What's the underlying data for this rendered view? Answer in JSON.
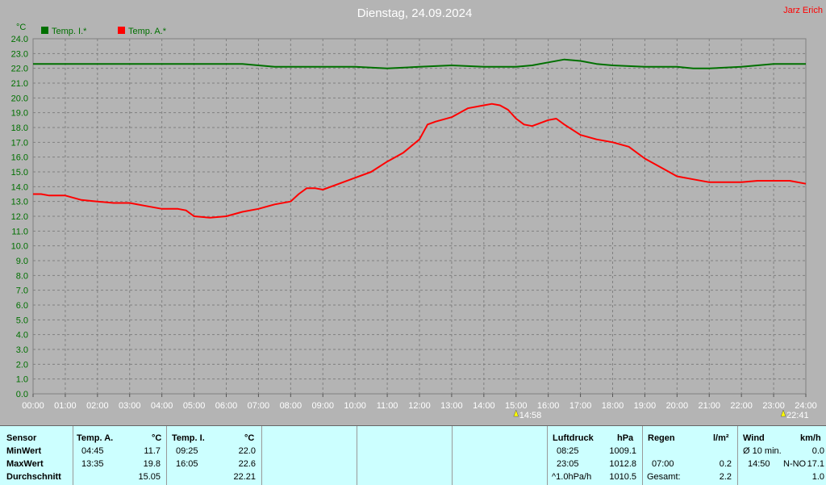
{
  "header": {
    "title": "Dienstag, 24.09.2024",
    "author": "Jarz Erich"
  },
  "chart_data": {
    "type": "line",
    "yunit": "°C",
    "ylim": [
      0,
      24
    ],
    "yticks": [
      "0.0",
      "1.0",
      "2.0",
      "3.0",
      "4.0",
      "5.0",
      "6.0",
      "7.0",
      "8.0",
      "9.0",
      "10.0",
      "11.0",
      "12.0",
      "13.0",
      "14.0",
      "15.0",
      "16.0",
      "17.0",
      "18.0",
      "19.0",
      "20.0",
      "21.0",
      "22.0",
      "23.0",
      "24.0"
    ],
    "xlim": [
      0,
      24
    ],
    "xticks": [
      "00:00",
      "01:00",
      "02:00",
      "03:00",
      "04:00",
      "05:00",
      "06:00",
      "07:00",
      "08:00",
      "09:00",
      "10:00",
      "11:00",
      "12:00",
      "13:00",
      "14:00",
      "15:00",
      "16:00",
      "17:00",
      "18:00",
      "19:00",
      "20:00",
      "21:00",
      "22:00",
      "23:00",
      "24:00"
    ],
    "grid": true,
    "legend": "top-left",
    "series": [
      {
        "name": "Temp. I.*",
        "color": "#007000",
        "x": [
          0,
          1,
          2,
          3,
          4,
          5,
          6,
          6.5,
          7,
          7.5,
          8,
          9,
          10,
          11,
          12,
          13,
          14,
          15,
          15.5,
          16,
          16.5,
          17,
          17.5,
          18,
          19,
          20,
          20.5,
          21,
          22,
          23,
          24
        ],
        "y": [
          22.3,
          22.3,
          22.3,
          22.3,
          22.3,
          22.3,
          22.3,
          22.3,
          22.2,
          22.1,
          22.1,
          22.1,
          22.1,
          22.0,
          22.1,
          22.2,
          22.1,
          22.1,
          22.2,
          22.4,
          22.6,
          22.5,
          22.3,
          22.2,
          22.1,
          22.1,
          22.0,
          22.0,
          22.1,
          22.3,
          22.3
        ]
      },
      {
        "name": "Temp. A.*",
        "color": "#ff0000",
        "x": [
          0,
          0.25,
          0.5,
          1,
          1.5,
          2,
          2.5,
          3,
          3.5,
          4,
          4.25,
          4.5,
          4.75,
          5,
          5.5,
          6,
          6.5,
          7,
          7.5,
          8,
          8.25,
          8.5,
          8.75,
          9,
          9.5,
          10,
          10.5,
          11,
          11.5,
          12,
          12.25,
          12.5,
          13,
          13.5,
          14,
          14.25,
          14.5,
          14.75,
          15,
          15.25,
          15.5,
          16,
          16.25,
          16.5,
          17,
          17.5,
          18,
          18.5,
          19,
          19.5,
          20,
          20.5,
          21,
          21.5,
          22,
          22.5,
          23,
          23.5,
          24
        ],
        "y": [
          13.5,
          13.5,
          13.4,
          13.4,
          13.1,
          13.0,
          12.9,
          12.9,
          12.7,
          12.5,
          12.5,
          12.5,
          12.4,
          12.0,
          11.9,
          12.0,
          12.3,
          12.5,
          12.8,
          13.0,
          13.5,
          13.9,
          13.9,
          13.8,
          14.2,
          14.6,
          15.0,
          15.7,
          16.3,
          17.2,
          18.2,
          18.4,
          18.7,
          19.3,
          19.5,
          19.6,
          19.5,
          19.2,
          18.6,
          18.2,
          18.1,
          18.5,
          18.6,
          18.2,
          17.5,
          17.2,
          17.0,
          16.7,
          15.9,
          15.3,
          14.7,
          14.5,
          14.3,
          14.3,
          14.3,
          14.4,
          14.4,
          14.4,
          14.2
        ]
      }
    ],
    "annotations": [
      {
        "x": 15.0,
        "label": "14:58",
        "icon": "sunrise-icon"
      },
      {
        "x": 23.3,
        "label": "22:41",
        "icon": "sunset-icon"
      }
    ]
  },
  "table": {
    "sensor": {
      "header": "Sensor",
      "min": "MinWert",
      "max": "MaxWert",
      "avg": "Durchschnitt"
    },
    "temp_a": {
      "header": "Temp. A.",
      "unit": "°C",
      "min_time": "04:45",
      "min_val": "11.7",
      "max_time": "13:35",
      "max_val": "19.8",
      "avg_val": "15.05"
    },
    "temp_i": {
      "header": "Temp. I.",
      "unit": "°C",
      "min_time": "09:25",
      "min_val": "22.0",
      "max_time": "16:05",
      "max_val": "22.6",
      "avg_val": "22.21"
    },
    "luft": {
      "header": "Luftdruck",
      "unit": "hPa",
      "min_time": "08:25",
      "min_val": "1009.1",
      "max_time": "23:05",
      "max_val": "1012.8",
      "avg_label": "^1.0hPa/h",
      "avg_val": "1010.5"
    },
    "regen": {
      "header": "Regen",
      "unit": "l/m²",
      "max_time": "07:00",
      "max_val": "0.2",
      "avg_label": "Gesamt:",
      "avg_val": "2.2"
    },
    "wind": {
      "header": "Wind",
      "unit": "km/h",
      "min_label": "Ø 10 min.",
      "min_val": "0.0",
      "max_time": "14:50",
      "max_dir": "N-NO",
      "max_val": "17.1",
      "avg_val": "1.0"
    }
  }
}
